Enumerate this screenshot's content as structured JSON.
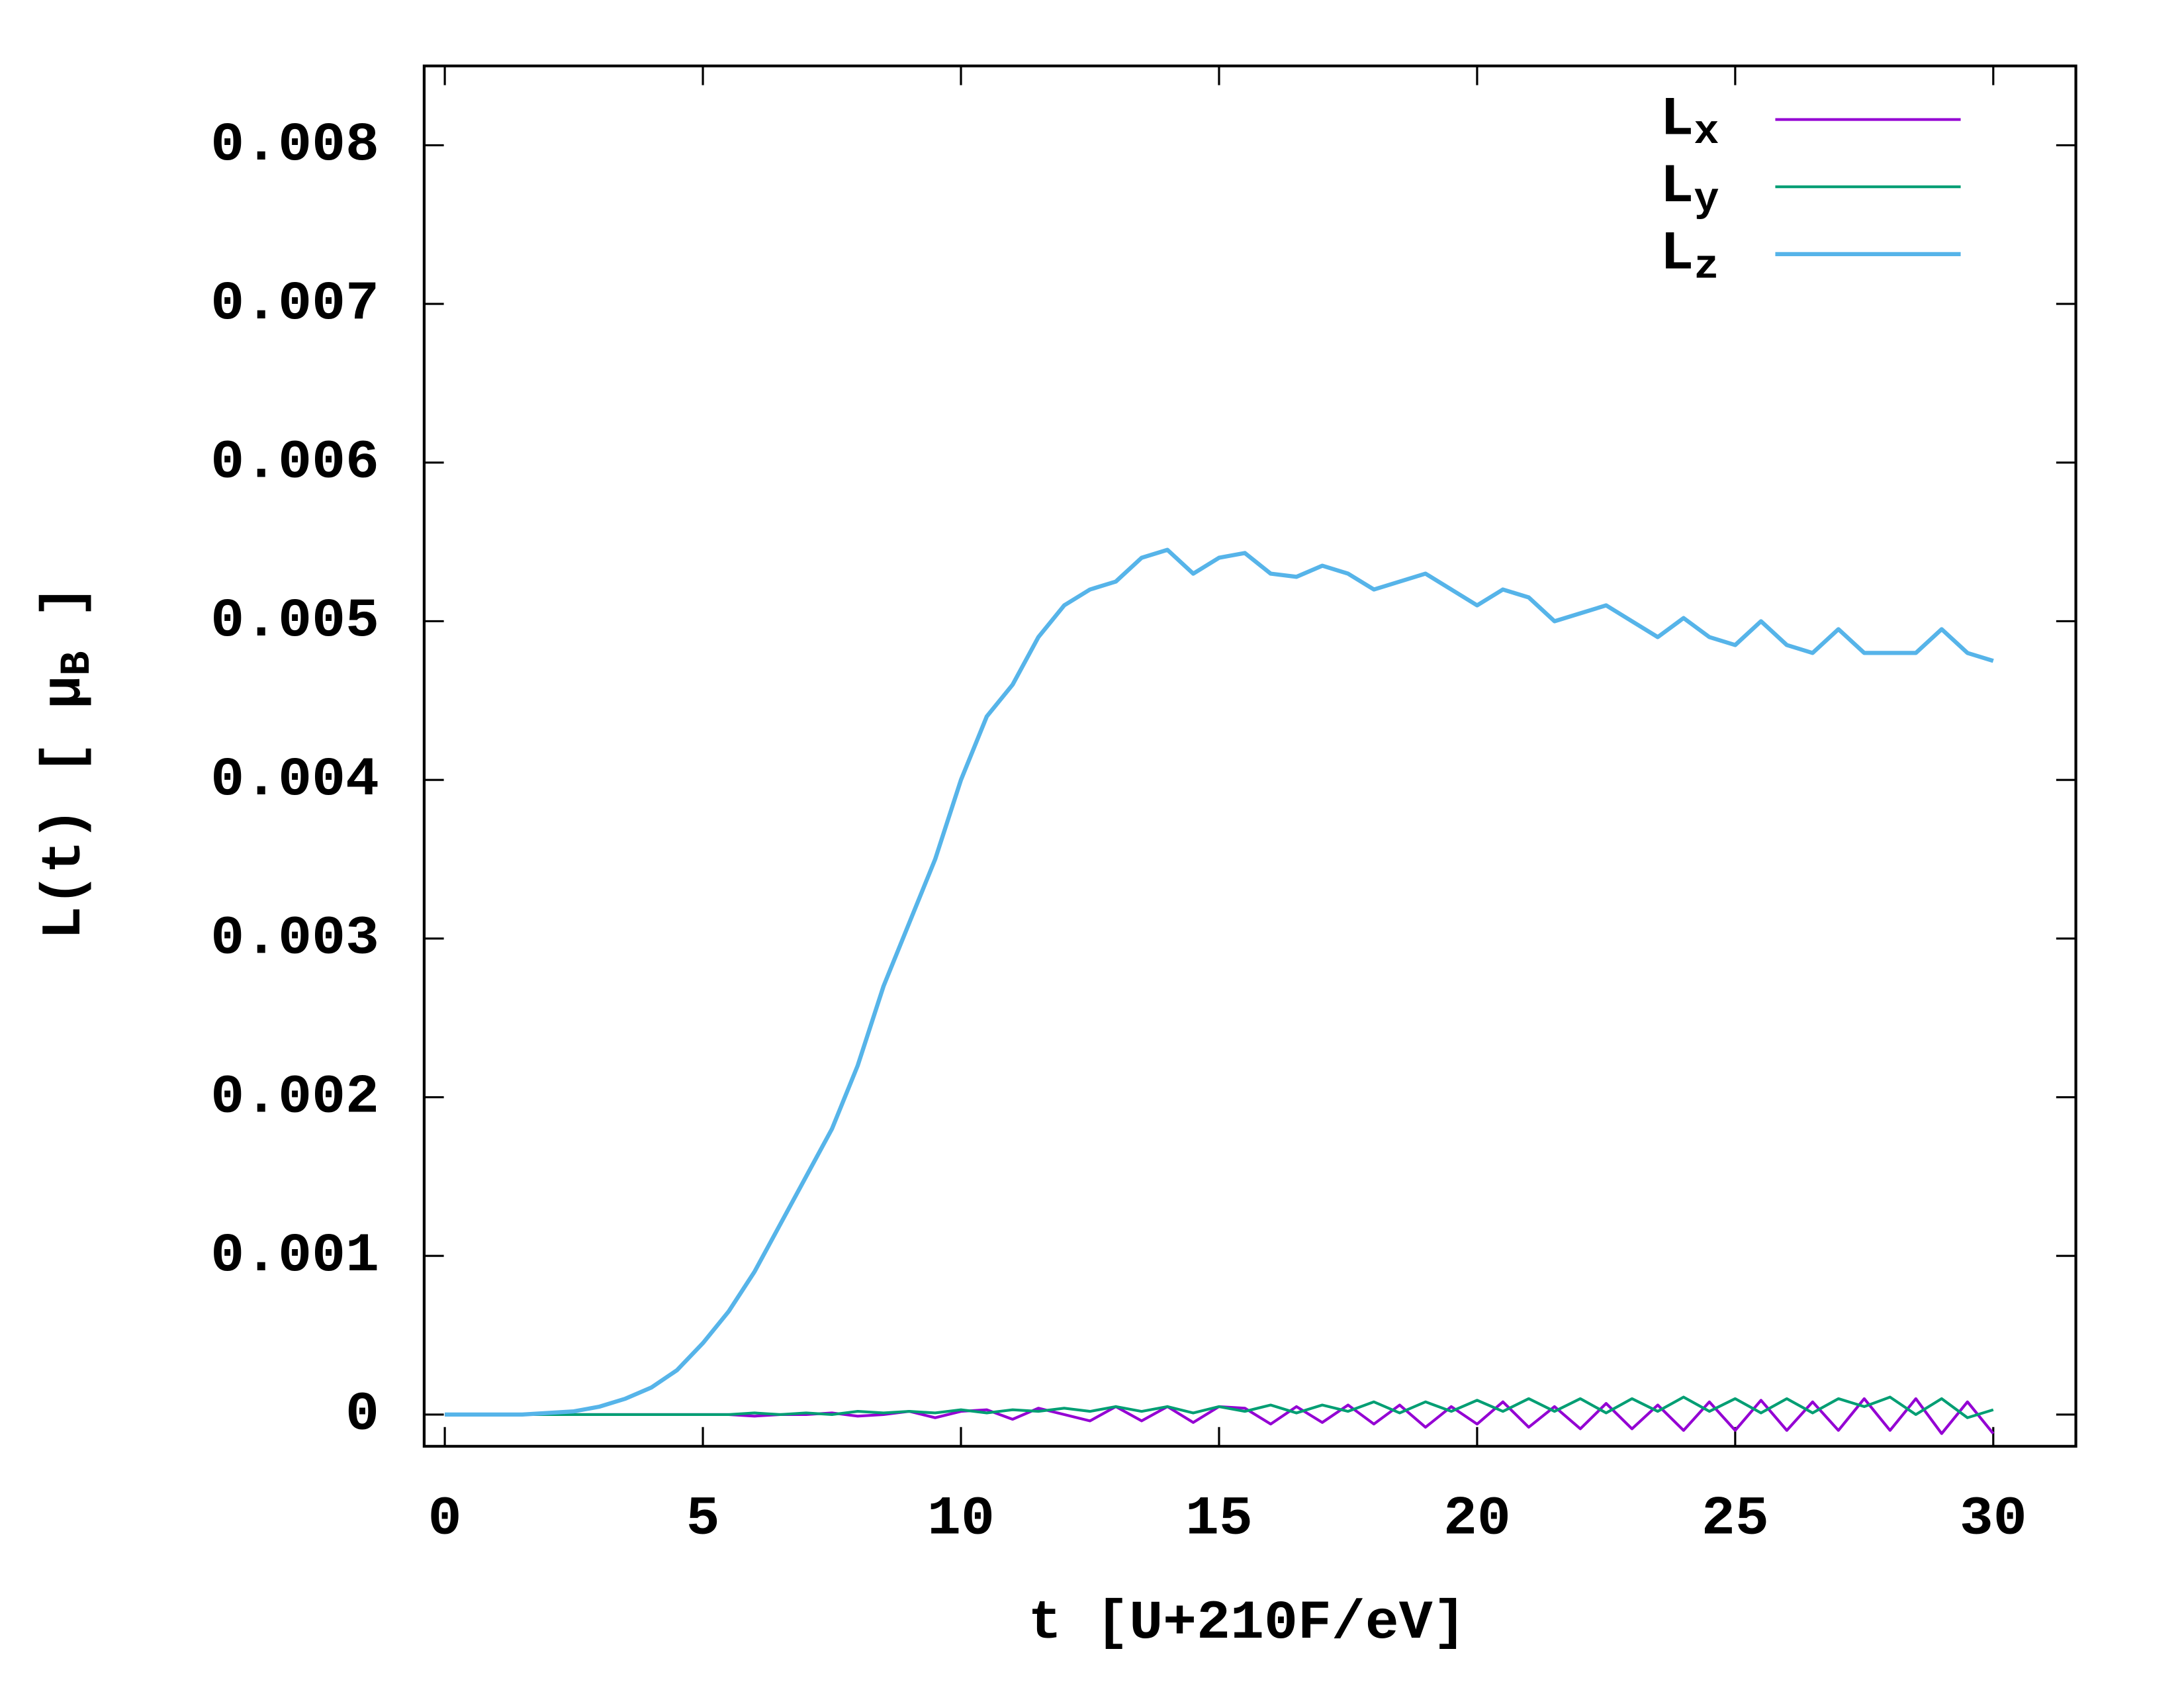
{
  "chart_data": {
    "type": "line",
    "xlabel": "t  [U+210F/eV]",
    "ylabel": "L(t)  [ μ_B ]",
    "xlim": [
      -0.4,
      31.6
    ],
    "ylim": [
      -0.0002,
      0.0085
    ],
    "xticks": [
      0,
      5,
      10,
      15,
      20,
      25,
      30
    ],
    "yticks": [
      0,
      0.001,
      0.002,
      0.003,
      0.004,
      0.005,
      0.006,
      0.007,
      0.008
    ],
    "legend": "top-right",
    "x": [
      0,
      0.5,
      1,
      1.5,
      2,
      2.5,
      3,
      3.5,
      4,
      4.5,
      5,
      5.5,
      6,
      6.5,
      7,
      7.5,
      8,
      8.5,
      9,
      9.5,
      10,
      10.5,
      11,
      11.5,
      12,
      12.5,
      13,
      13.5,
      14,
      14.5,
      15,
      15.5,
      16,
      16.5,
      17,
      17.5,
      18,
      18.5,
      19,
      19.5,
      20,
      20.5,
      21,
      21.5,
      22,
      22.5,
      23,
      23.5,
      24,
      24.5,
      25,
      25.5,
      26,
      26.5,
      27,
      27.5,
      28,
      28.5,
      29,
      29.5,
      30
    ],
    "series": [
      {
        "name": "L_x",
        "color": "#9400d3",
        "width": 2,
        "values": [
          0,
          0,
          0,
          0,
          0,
          0,
          0,
          0,
          0,
          0,
          0,
          0,
          -1e-05,
          0,
          0,
          1e-05,
          -1e-05,
          0,
          2e-05,
          -2e-05,
          2e-05,
          3e-05,
          -3e-05,
          4e-05,
          0,
          -4e-05,
          5e-05,
          -4e-05,
          5e-05,
          -5e-05,
          5e-05,
          4e-05,
          -6e-05,
          5e-05,
          -5e-05,
          6e-05,
          -6e-05,
          6e-05,
          -8e-05,
          5e-05,
          -6e-05,
          8e-05,
          -8e-05,
          5e-05,
          -9e-05,
          7e-05,
          -9e-05,
          6e-05,
          -0.0001,
          8e-05,
          -0.0001,
          9e-05,
          -0.0001,
          8e-05,
          -0.0001,
          0.0001,
          -0.0001,
          0.0001,
          -0.00012,
          8e-05,
          -0.00012
        ]
      },
      {
        "name": "L_y",
        "color": "#009e73",
        "width": 2,
        "values": [
          0,
          0,
          0,
          0,
          0,
          0,
          0,
          0,
          0,
          0,
          0,
          0,
          1e-05,
          0,
          1e-05,
          0,
          2e-05,
          1e-05,
          2e-05,
          1e-05,
          3e-05,
          1e-05,
          3e-05,
          2e-05,
          4e-05,
          2e-05,
          5e-05,
          2e-05,
          5e-05,
          1e-05,
          5e-05,
          2e-05,
          6e-05,
          1e-05,
          6e-05,
          2e-05,
          8e-05,
          1e-05,
          8e-05,
          2e-05,
          9e-05,
          2e-05,
          0.0001,
          2e-05,
          0.0001,
          1e-05,
          0.0001,
          2e-05,
          0.00011,
          2e-05,
          0.0001,
          1e-05,
          0.0001,
          1e-05,
          0.0001,
          5e-05,
          0.00011,
          0,
          0.0001,
          -2e-05,
          3e-05
        ]
      },
      {
        "name": "L_z",
        "color": "#56b4e9",
        "width": 3,
        "values": [
          0,
          0,
          0,
          0,
          1e-05,
          2e-05,
          5e-05,
          0.0001,
          0.00017,
          0.00028,
          0.00045,
          0.00065,
          0.0009,
          0.0012,
          0.0015,
          0.0018,
          0.0022,
          0.0027,
          0.0031,
          0.0035,
          0.004,
          0.0044,
          0.0046,
          0.0049,
          0.0051,
          0.0052,
          0.00525,
          0.0054,
          0.00545,
          0.0053,
          0.0054,
          0.00543,
          0.0053,
          0.00528,
          0.00535,
          0.0053,
          0.0052,
          0.00525,
          0.0053,
          0.0052,
          0.0051,
          0.0052,
          0.00515,
          0.005,
          0.00505,
          0.0051,
          0.005,
          0.0049,
          0.00502,
          0.0049,
          0.00485,
          0.005,
          0.00485,
          0.0048,
          0.00495,
          0.0048,
          0.0048,
          0.0048,
          0.00495,
          0.0048,
          0.00475
        ]
      }
    ]
  }
}
